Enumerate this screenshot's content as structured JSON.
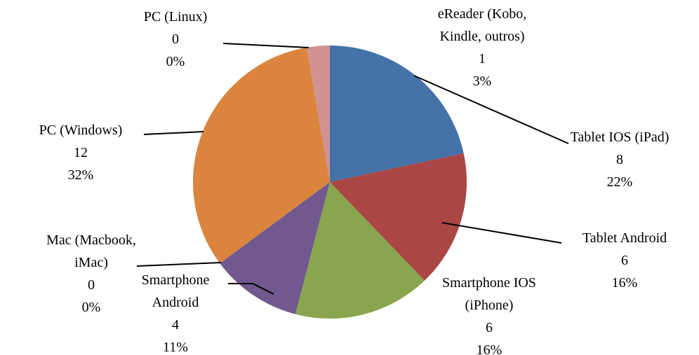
{
  "chart_data": {
    "type": "pie",
    "categories": [
      "Tablet IOS (iPad)",
      "Tablet Android",
      "Smartphone IOS (iPhone)",
      "Smartphone Android",
      "Mac (Macbook, iMac)",
      "PC (Windows)",
      "PC (Linux)",
      "eReader (Kobo, Kindle, outros)"
    ],
    "values": [
      8,
      6,
      6,
      4,
      0,
      12,
      0,
      1
    ],
    "percent_labels": [
      "22%",
      "16%",
      "16%",
      "11%",
      "0%",
      "32%",
      "0%",
      "3%"
    ],
    "colors": [
      "#4572a7",
      "#aa4643",
      "#89a54e",
      "#71588f",
      "#4198af",
      "#db843d",
      "#93a9cf",
      "#d19392"
    ]
  }
}
